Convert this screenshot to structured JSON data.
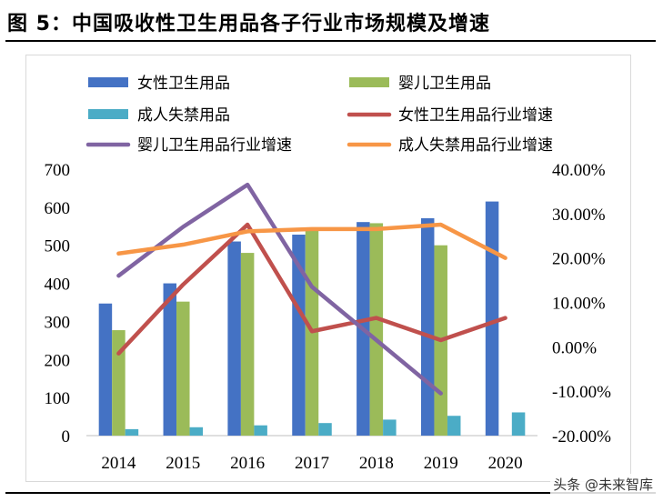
{
  "figure": {
    "title": "图 5：中国吸收性卫生用品各子行业市场规模及增速",
    "watermark": "头条 @未来智库"
  },
  "chart_data": {
    "type": "bar",
    "categories": [
      "2014",
      "2015",
      "2016",
      "2017",
      "2018",
      "2019",
      "2020"
    ],
    "bar_series": [
      {
        "name": "女性卫生用品",
        "color": "#4472c4",
        "values": [
          347,
          400,
          510,
          528,
          561,
          571,
          615
        ]
      },
      {
        "name": "婴儿卫生用品",
        "color": "#9bbb59",
        "values": [
          277,
          352,
          480,
          543,
          558,
          500,
          null
        ]
      },
      {
        "name": "成人失禁用品",
        "color": "#4bacc6",
        "values": [
          17,
          22,
          27,
          33,
          42,
          52,
          61
        ]
      }
    ],
    "line_series": [
      {
        "name": "女性卫生用品行业增速",
        "color": "#c0504d",
        "values": [
          -1.5,
          14.0,
          27.5,
          3.5,
          6.5,
          1.5,
          6.5
        ]
      },
      {
        "name": "婴儿卫生用品行业增速",
        "color": "#8064a2",
        "values": [
          16.0,
          27.0,
          36.5,
          13.5,
          1.5,
          -10.5,
          null
        ]
      },
      {
        "name": "成人失禁用品行业增速",
        "color": "#f79646",
        "values": [
          21.0,
          23.0,
          26.0,
          26.5,
          26.5,
          27.5,
          20.0
        ]
      }
    ],
    "y_left": {
      "min": 0,
      "max": 700,
      "ticks": [
        "0",
        "100",
        "200",
        "300",
        "400",
        "500",
        "600",
        "700"
      ]
    },
    "y_right": {
      "min": -20,
      "max": 40,
      "ticks": [
        "-20.00%",
        "-10.00%",
        "0.00%",
        "10.00%",
        "20.00%",
        "30.00%",
        "40.00%"
      ]
    },
    "legend_position": "top",
    "grid": false
  }
}
